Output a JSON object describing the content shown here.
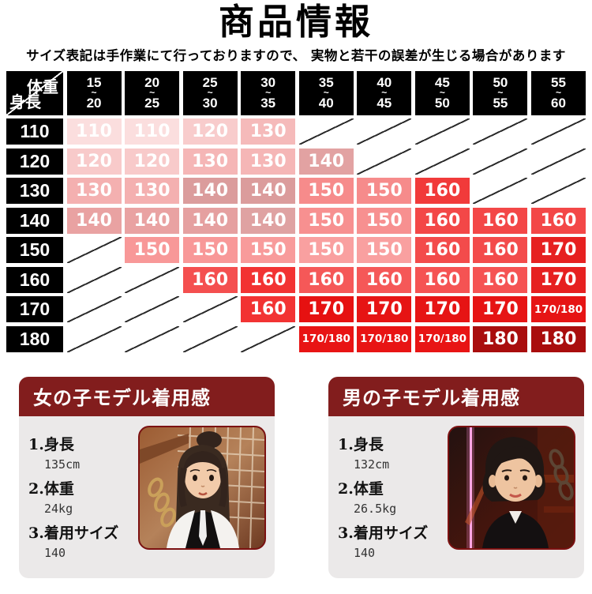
{
  "page": {
    "title": "商品情報",
    "subtitle": "サイズ表記は手作業にて行っておりますので、 実物と若干の誤差が生じる場合があります"
  },
  "size_chart": {
    "corner_top_right": "体重",
    "corner_bottom_left": "身長",
    "tilde": "~",
    "columns": [
      {
        "from": "15",
        "to": "20"
      },
      {
        "from": "20",
        "to": "25"
      },
      {
        "from": "25",
        "to": "30"
      },
      {
        "from": "30",
        "to": "35"
      },
      {
        "from": "35",
        "to": "40"
      },
      {
        "from": "40",
        "to": "45"
      },
      {
        "from": "45",
        "to": "50"
      },
      {
        "from": "50",
        "to": "55"
      },
      {
        "from": "55",
        "to": "60"
      }
    ],
    "rows": [
      {
        "height": "110",
        "cells": [
          {
            "v": "110",
            "c": "#fbdede"
          },
          {
            "v": "110",
            "c": "#fbdede"
          },
          {
            "v": "120",
            "c": "#f8cccc"
          },
          {
            "v": "130",
            "c": "#f5baba"
          },
          null,
          null,
          null,
          null,
          null
        ]
      },
      {
        "height": "120",
        "cells": [
          {
            "v": "120",
            "c": "#f8caca"
          },
          {
            "v": "120",
            "c": "#f8caca"
          },
          {
            "v": "130",
            "c": "#f5b6b6"
          },
          {
            "v": "130",
            "c": "#f5b6b6"
          },
          {
            "v": "140",
            "c": "#e2a2a2"
          },
          null,
          null,
          null,
          null
        ]
      },
      {
        "height": "130",
        "cells": [
          {
            "v": "130",
            "c": "#f4b0b0"
          },
          {
            "v": "130",
            "c": "#f4b0b0"
          },
          {
            "v": "140",
            "c": "#db9c9c"
          },
          {
            "v": "140",
            "c": "#db9c9c"
          },
          {
            "v": "150",
            "c": "#f68b8b"
          },
          {
            "v": "150",
            "c": "#f68b8b"
          },
          {
            "v": "160",
            "c": "#f13a3a"
          },
          null,
          null
        ]
      },
      {
        "height": "140",
        "cells": [
          {
            "v": "140",
            "c": "#e9a2a2"
          },
          {
            "v": "140",
            "c": "#e9a2a2"
          },
          {
            "v": "140",
            "c": "#e5a0a0"
          },
          {
            "v": "140",
            "c": "#dfa2a2"
          },
          {
            "v": "150",
            "c": "#f79090"
          },
          {
            "v": "150",
            "c": "#f79090"
          },
          {
            "v": "160",
            "c": "#f34747"
          },
          {
            "v": "160",
            "c": "#f34747"
          },
          {
            "v": "160",
            "c": "#f34747"
          }
        ]
      },
      {
        "height": "150",
        "cells": [
          null,
          {
            "v": "150",
            "c": "#f89898"
          },
          {
            "v": "150",
            "c": "#f89898"
          },
          {
            "v": "150",
            "c": "#f89b9b"
          },
          {
            "v": "150",
            "c": "#f9a0a0"
          },
          {
            "v": "150",
            "c": "#f9a0a0"
          },
          {
            "v": "160",
            "c": "#f34b4b"
          },
          {
            "v": "160",
            "c": "#f34b4b"
          },
          {
            "v": "170",
            "c": "#e62020"
          }
        ]
      },
      {
        "height": "160",
        "cells": [
          null,
          null,
          {
            "v": "160",
            "c": "#f44f4f"
          },
          {
            "v": "160",
            "c": "#f23333"
          },
          {
            "v": "160",
            "c": "#f55858"
          },
          {
            "v": "160",
            "c": "#f55858"
          },
          {
            "v": "160",
            "c": "#f55353"
          },
          {
            "v": "160",
            "c": "#f55353"
          },
          {
            "v": "170",
            "c": "#e62020"
          }
        ]
      },
      {
        "height": "170",
        "cells": [
          null,
          null,
          null,
          {
            "v": "160",
            "c": "#f23333"
          },
          {
            "v": "170",
            "c": "#e61111"
          },
          {
            "v": "170",
            "c": "#e61414"
          },
          {
            "v": "170",
            "c": "#e61414"
          },
          {
            "v": "170",
            "c": "#e61414"
          },
          {
            "v": "170/180",
            "c": "#e61414"
          }
        ]
      },
      {
        "height": "180",
        "cells": [
          null,
          null,
          null,
          null,
          {
            "v": "170/180",
            "c": "#e81414"
          },
          {
            "v": "170/180",
            "c": "#e81414"
          },
          {
            "v": "170/180",
            "c": "#e81414"
          },
          {
            "v": "180",
            "c": "#a90d0d"
          },
          {
            "v": "180",
            "c": "#a90d0d"
          }
        ]
      }
    ]
  },
  "cards": [
    {
      "title": "女の子モデル着用感",
      "photo": "girl-model-photo",
      "items": [
        {
          "label": "1.身長",
          "value": "135cm"
        },
        {
          "label": "2.体重",
          "value": "24kg"
        },
        {
          "label": "3.着用サイズ",
          "value": "140"
        }
      ]
    },
    {
      "title": "男の子モデル着用感",
      "photo": "boy-model-photo",
      "items": [
        {
          "label": "1.身長",
          "value": "132cm"
        },
        {
          "label": "2.体重",
          "value": "26.5kg"
        },
        {
          "label": "3.着用サイズ",
          "value": "140"
        }
      ]
    }
  ],
  "colors": {
    "accent_maroon": "#821d1d",
    "table_black": "#000000",
    "card_body_gray": "#ebe9e9",
    "empty_cell_line": "#2b2b2b",
    "photo_border": "#7c1111"
  }
}
